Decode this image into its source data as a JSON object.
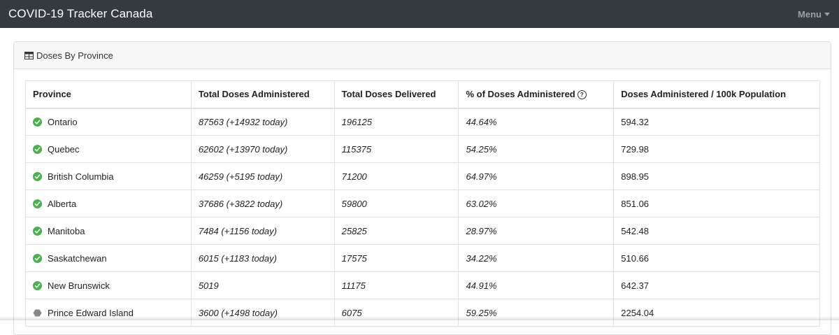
{
  "navbar": {
    "brand": "COVID-19 Tracker Canada",
    "menu_label": "Menu"
  },
  "card": {
    "title": "Doses By Province"
  },
  "table": {
    "headers": {
      "province": "Province",
      "administered": "Total Doses Administered",
      "delivered": "Total Doses Delivered",
      "percent": "% of Doses Administered",
      "per100k": "Doses Administered / 100k Population"
    },
    "rows": [
      {
        "province": "Ontario",
        "status": "check",
        "administered": "87563 (+14932 today)",
        "delivered": "196125",
        "percent": "44.64%",
        "per100k": "594.32"
      },
      {
        "province": "Quebec",
        "status": "check",
        "administered": "62602 (+13970 today)",
        "delivered": "115375",
        "percent": "54.25%",
        "per100k": "729.98"
      },
      {
        "province": "British Columbia",
        "status": "check",
        "administered": "46259 (+5195 today)",
        "delivered": "71200",
        "percent": "64.97%",
        "per100k": "898.95"
      },
      {
        "province": "Alberta",
        "status": "check",
        "administered": "37686 (+3822 today)",
        "delivered": "59800",
        "percent": "63.02%",
        "per100k": "851.06"
      },
      {
        "province": "Manitoba",
        "status": "check",
        "administered": "7484 (+1156 today)",
        "delivered": "25825",
        "percent": "28.97%",
        "per100k": "542.48"
      },
      {
        "province": "Saskatchewan",
        "status": "check",
        "administered": "6015 (+1183 today)",
        "delivered": "17575",
        "percent": "34.22%",
        "per100k": "510.66"
      },
      {
        "province": "New Brunswick",
        "status": "check",
        "administered": "5019",
        "delivered": "11175",
        "percent": "44.91%",
        "per100k": "642.37"
      },
      {
        "province": "Prince Edward Island",
        "status": "hexagon",
        "administered": "3600 (+1498 today)",
        "delivered": "6075",
        "percent": "59.25%",
        "per100k": "2254.04"
      }
    ]
  },
  "colors": {
    "navbar_bg": "#343a40",
    "check_green": "#4caf50",
    "hexagon_gray": "#888888"
  }
}
